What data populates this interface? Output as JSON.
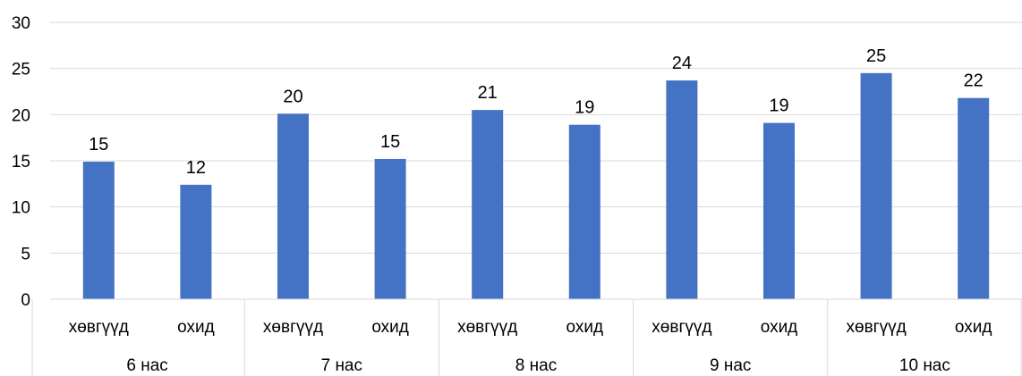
{
  "chart_data": {
    "type": "bar",
    "groups": [
      "6 нас",
      "7 нас",
      "8 нас",
      "9 нас",
      "10 нас"
    ],
    "subcategories": [
      "хөвгүүд",
      "охид"
    ],
    "categories": [
      "хөвгүүд",
      "охид",
      "хөвгүүд",
      "охид",
      "хөвгүүд",
      "охид",
      "хөвгүүд",
      "охид",
      "хөвгүүд",
      "охид"
    ],
    "values": [
      14.9,
      12.4,
      20.1,
      15.2,
      20.5,
      18.9,
      23.7,
      19.1,
      24.5,
      21.8
    ],
    "data_labels": [
      "15",
      "12",
      "20",
      "15",
      "21",
      "19",
      "24",
      "19",
      "25",
      "22"
    ],
    "ylim": [
      0,
      30
    ],
    "yticks": [
      "0",
      "5",
      "10",
      "15",
      "20",
      "25",
      "30"
    ],
    "grid": true,
    "legend": "none",
    "bar_color": "#4472c4",
    "grid_color": "#d9d9d9"
  }
}
